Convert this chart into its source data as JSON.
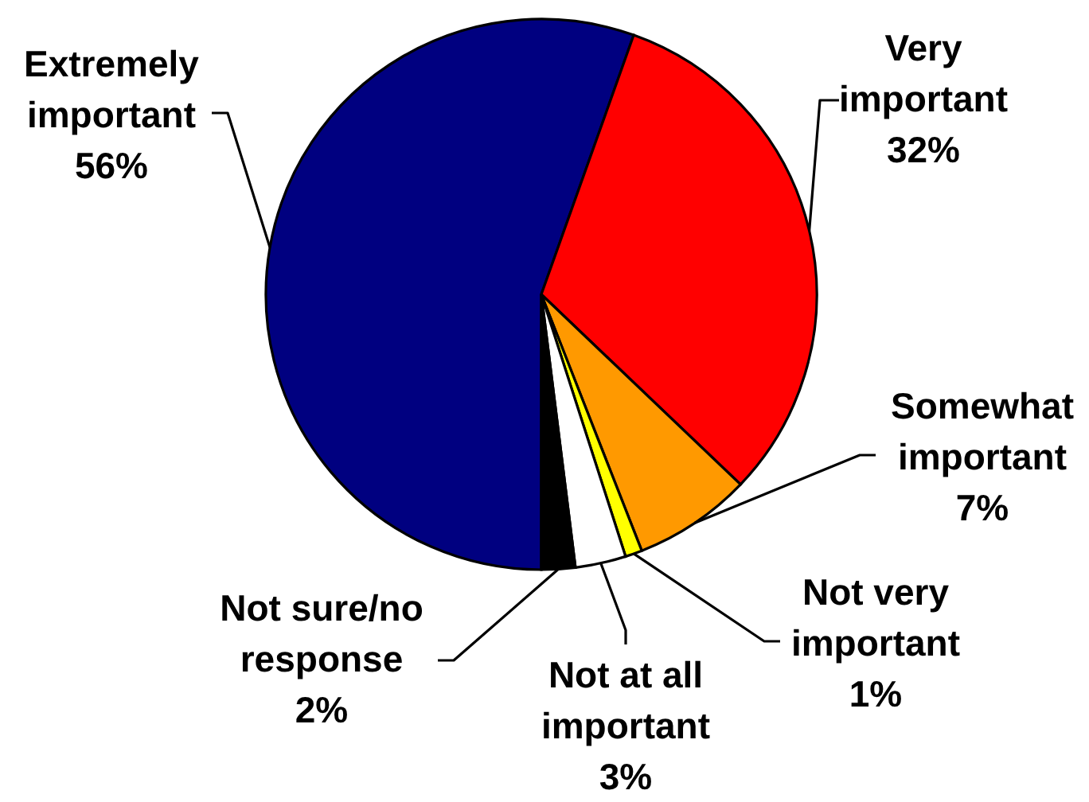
{
  "chart_data": {
    "type": "pie",
    "categories": [
      "Extremely important",
      "Very important",
      "Somewhat important",
      "Not very important",
      "Not at all important",
      "Not sure/no response"
    ],
    "values": [
      56,
      32,
      7,
      1,
      3,
      2
    ],
    "colors": [
      "#000080",
      "#ff0000",
      "#ff9900",
      "#ffff00",
      "#ffffff",
      "#000000"
    ],
    "value_labels": [
      "56%",
      "32%",
      "7%",
      "1%",
      "3%",
      "2%"
    ]
  }
}
